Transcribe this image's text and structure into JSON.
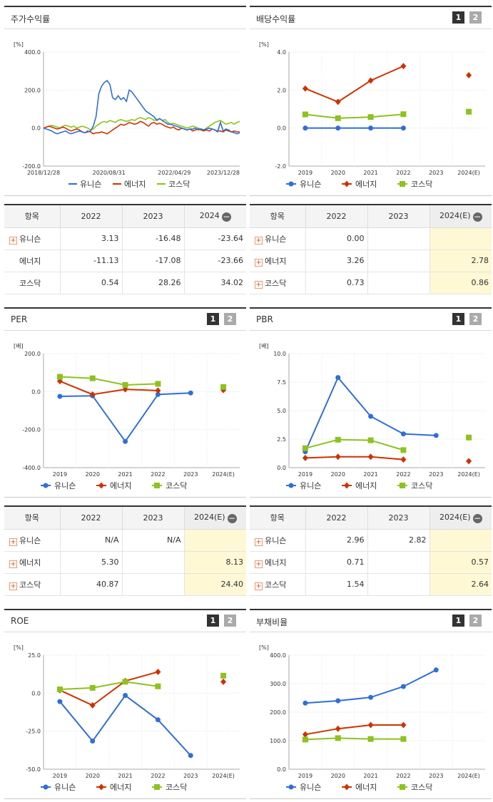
{
  "colors": {
    "union": "#2f6fd6",
    "energy": "#cc3300",
    "kosdaq": "#8dc21f"
  },
  "legend": {
    "s1": "유니슨",
    "s2": "에너지",
    "s3": "코스닥"
  },
  "pages": {
    "p1": "1",
    "p2": "2"
  },
  "panels": {
    "stock": {
      "title": "주가수익률",
      "unit": "[%]"
    },
    "div": {
      "title": "배당수익률",
      "unit": "[%]"
    },
    "per": {
      "title": "PER",
      "unit": "[배]"
    },
    "pbr": {
      "title": "PBR",
      "unit": "[배]"
    },
    "roe": {
      "title": "ROE",
      "unit": "[%]"
    },
    "debt": {
      "title": "부채비율",
      "unit": "[%]"
    }
  },
  "tables": {
    "stock": {
      "head": [
        "항목",
        "2022",
        "2023",
        "2024"
      ],
      "rows": [
        {
          "name": "유니슨",
          "plus": true,
          "v": [
            "3.13",
            "-16.48",
            "-23.64"
          ]
        },
        {
          "name": "에너지",
          "plus": false,
          "v": [
            "-11.13",
            "-17.08",
            "-23.66"
          ]
        },
        {
          "name": "코스닥",
          "plus": false,
          "v": [
            "0.54",
            "28.26",
            "34.02"
          ]
        }
      ]
    },
    "div": {
      "head": [
        "항목",
        "2022",
        "2023",
        "2024(E)"
      ],
      "rows": [
        {
          "name": "유니슨",
          "plus": true,
          "v": [
            "0.00",
            "",
            ""
          ]
        },
        {
          "name": "에너지",
          "plus": true,
          "v": [
            "3.26",
            "",
            "2.78"
          ]
        },
        {
          "name": "코스닥",
          "plus": true,
          "v": [
            "0.73",
            "",
            "0.86"
          ]
        }
      ]
    },
    "per": {
      "head": [
        "항목",
        "2022",
        "2023",
        "2024(E)"
      ],
      "rows": [
        {
          "name": "유니슨",
          "plus": true,
          "v": [
            "N/A",
            "N/A",
            ""
          ]
        },
        {
          "name": "에너지",
          "plus": true,
          "v": [
            "5.30",
            "",
            "8.13"
          ]
        },
        {
          "name": "코스닥",
          "plus": true,
          "v": [
            "40.87",
            "",
            "24.40"
          ]
        }
      ]
    },
    "pbr": {
      "head": [
        "항목",
        "2022",
        "2023",
        "2024(E)"
      ],
      "rows": [
        {
          "name": "유니슨",
          "plus": true,
          "v": [
            "2.96",
            "2.82",
            ""
          ]
        },
        {
          "name": "에너지",
          "plus": true,
          "v": [
            "0.71",
            "",
            "0.57"
          ]
        },
        {
          "name": "코스닥",
          "plus": true,
          "v": [
            "1.54",
            "",
            "2.64"
          ]
        }
      ]
    }
  },
  "chart_data": [
    {
      "id": "stock",
      "type": "line",
      "unit": "[%]",
      "ylim": [
        -200,
        400
      ],
      "yticks": [
        "400.0",
        "200.0",
        "0.0",
        "-200.0"
      ],
      "xlabels": [
        "2018/12/28",
        "2020/08/31",
        "2022/04/29",
        "2023/12/28"
      ],
      "series": [
        {
          "name": "유니슨",
          "color": "#2f6fd6",
          "values": [
            0,
            -5,
            -10,
            -15,
            -25,
            -30,
            -25,
            -20,
            -15,
            -25,
            -30,
            -25,
            -20,
            -15,
            -20,
            -25,
            -20,
            -15,
            10,
            60,
            180,
            220,
            240,
            250,
            230,
            160,
            150,
            170,
            150,
            160,
            140,
            200,
            190,
            170,
            150,
            130,
            110,
            90,
            80,
            70,
            60,
            40,
            50,
            40,
            30,
            20,
            20,
            15,
            10,
            5,
            0,
            -5,
            -10,
            -5,
            -5,
            0,
            -10,
            -5,
            -10,
            -5,
            0,
            -5,
            -10,
            -20,
            30,
            -15,
            -5,
            -10,
            -20,
            -25,
            -30,
            -25
          ]
        },
        {
          "name": "에너지",
          "color": "#cc3300",
          "values": [
            0,
            5,
            10,
            5,
            0,
            -5,
            0,
            5,
            0,
            -10,
            -15,
            -10,
            -5,
            -10,
            -20,
            -25,
            -15,
            -20,
            -30,
            -25,
            -25,
            -20,
            -25,
            -30,
            -20,
            -10,
            0,
            10,
            20,
            15,
            20,
            30,
            25,
            20,
            25,
            35,
            30,
            20,
            10,
            25,
            30,
            20,
            25,
            20,
            10,
            5,
            0,
            5,
            -5,
            -10,
            0,
            -5,
            -10,
            -5,
            -15,
            -10,
            -5,
            -10,
            -15,
            -10,
            -15,
            -5,
            -10,
            -15,
            -15,
            -20,
            -10,
            -15,
            -20,
            -15,
            -20,
            -20
          ]
        },
        {
          "name": "코스닥",
          "color": "#8dc21f",
          "values": [
            0,
            5,
            10,
            15,
            10,
            5,
            0,
            10,
            15,
            10,
            5,
            10,
            0,
            5,
            10,
            5,
            0,
            -10,
            -5,
            10,
            20,
            30,
            35,
            30,
            40,
            35,
            30,
            40,
            45,
            40,
            35,
            40,
            45,
            40,
            50,
            55,
            50,
            45,
            55,
            50,
            40,
            45,
            50,
            40,
            45,
            30,
            20,
            25,
            20,
            15,
            10,
            5,
            0,
            5,
            10,
            5,
            0,
            -5,
            -10,
            0,
            10,
            20,
            30,
            35,
            40,
            30,
            20,
            25,
            30,
            20,
            30,
            35
          ]
        }
      ]
    },
    {
      "id": "div",
      "type": "line",
      "unit": "[%]",
      "ylim": [
        -2,
        4
      ],
      "yticks": [
        "4.0",
        "2.0",
        "0.0",
        "-2.0"
      ],
      "categories": [
        "2019",
        "2020",
        "2021",
        "2022",
        "2023",
        "2024(E)"
      ],
      "series": [
        {
          "name": "유니슨",
          "color": "#2f6fd6",
          "marker": "circle",
          "values": [
            0,
            0,
            0,
            0,
            null,
            null
          ]
        },
        {
          "name": "에너지",
          "color": "#cc3300",
          "marker": "diamond",
          "values": [
            2.08,
            1.38,
            2.5,
            3.26,
            null,
            2.78
          ]
        },
        {
          "name": "코스닥",
          "color": "#8dc21f",
          "marker": "square",
          "values": [
            0.72,
            0.52,
            0.58,
            0.73,
            null,
            0.86
          ]
        }
      ]
    },
    {
      "id": "per",
      "type": "line",
      "unit": "[배]",
      "ylim": [
        -400,
        200
      ],
      "yticks": [
        "200.0",
        "0.0",
        "-200.0",
        "-400.0"
      ],
      "categories": [
        "2019",
        "2020",
        "2021",
        "2022",
        "2023",
        "2024(E)"
      ],
      "series": [
        {
          "name": "유니슨",
          "color": "#2f6fd6",
          "marker": "circle",
          "values": [
            -25,
            -22,
            -262,
            -15,
            -7,
            null
          ]
        },
        {
          "name": "에너지",
          "color": "#cc3300",
          "marker": "diamond",
          "values": [
            55,
            -15,
            12,
            5.3,
            null,
            8.13
          ]
        },
        {
          "name": "코스닥",
          "color": "#8dc21f",
          "marker": "square",
          "values": [
            78,
            70,
            35,
            40.87,
            null,
            24.4
          ]
        }
      ]
    },
    {
      "id": "pbr",
      "type": "line",
      "unit": "[배]",
      "ylim": [
        0,
        10
      ],
      "yticks": [
        "10.0",
        "7.5",
        "5.0",
        "2.5",
        "0.0"
      ],
      "categories": [
        "2019",
        "2020",
        "2021",
        "2022",
        "2023",
        "2024(E)"
      ],
      "series": [
        {
          "name": "유니슨",
          "color": "#2f6fd6",
          "marker": "circle",
          "values": [
            1.4,
            7.9,
            4.5,
            2.96,
            2.82,
            null
          ]
        },
        {
          "name": "에너지",
          "color": "#cc3300",
          "marker": "diamond",
          "values": [
            0.85,
            0.95,
            0.95,
            0.71,
            null,
            0.57
          ]
        },
        {
          "name": "코스닥",
          "color": "#8dc21f",
          "marker": "square",
          "values": [
            1.7,
            2.45,
            2.4,
            1.54,
            null,
            2.64
          ]
        }
      ]
    },
    {
      "id": "roe",
      "type": "line",
      "unit": "[%]",
      "ylim": [
        -50,
        25
      ],
      "yticks": [
        "25.0",
        "0.0",
        "-25.0",
        "-50.0"
      ],
      "categories": [
        "2019",
        "2020",
        "2021",
        "2022",
        "2023",
        "2024(E)"
      ],
      "series": [
        {
          "name": "유니슨",
          "color": "#2f6fd6",
          "marker": "circle",
          "values": [
            -5.5,
            -31.5,
            -1.5,
            -17.5,
            -41,
            null
          ]
        },
        {
          "name": "에너지",
          "color": "#cc3300",
          "marker": "diamond",
          "values": [
            2,
            -8,
            8,
            14,
            null,
            7.5
          ]
        },
        {
          "name": "코스닥",
          "color": "#8dc21f",
          "marker": "square",
          "values": [
            2.5,
            3.5,
            7.5,
            4.5,
            null,
            11.5
          ]
        }
      ]
    },
    {
      "id": "debt",
      "type": "line",
      "unit": "[%]",
      "ylim": [
        0,
        400
      ],
      "yticks": [
        "400.0",
        "300.0",
        "200.0",
        "100.0",
        "0.0"
      ],
      "categories": [
        "2019",
        "2020",
        "2021",
        "2022",
        "2023",
        "2024(E)"
      ],
      "series": [
        {
          "name": "유니슨",
          "color": "#2f6fd6",
          "marker": "circle",
          "values": [
            232,
            240,
            252,
            290,
            348,
            null
          ]
        },
        {
          "name": "에너지",
          "color": "#cc3300",
          "marker": "diamond",
          "values": [
            122,
            142,
            155,
            155,
            null,
            null
          ]
        },
        {
          "name": "코스닥",
          "color": "#8dc21f",
          "marker": "square",
          "values": [
            104,
            109,
            106,
            106,
            null,
            null
          ]
        }
      ]
    }
  ]
}
